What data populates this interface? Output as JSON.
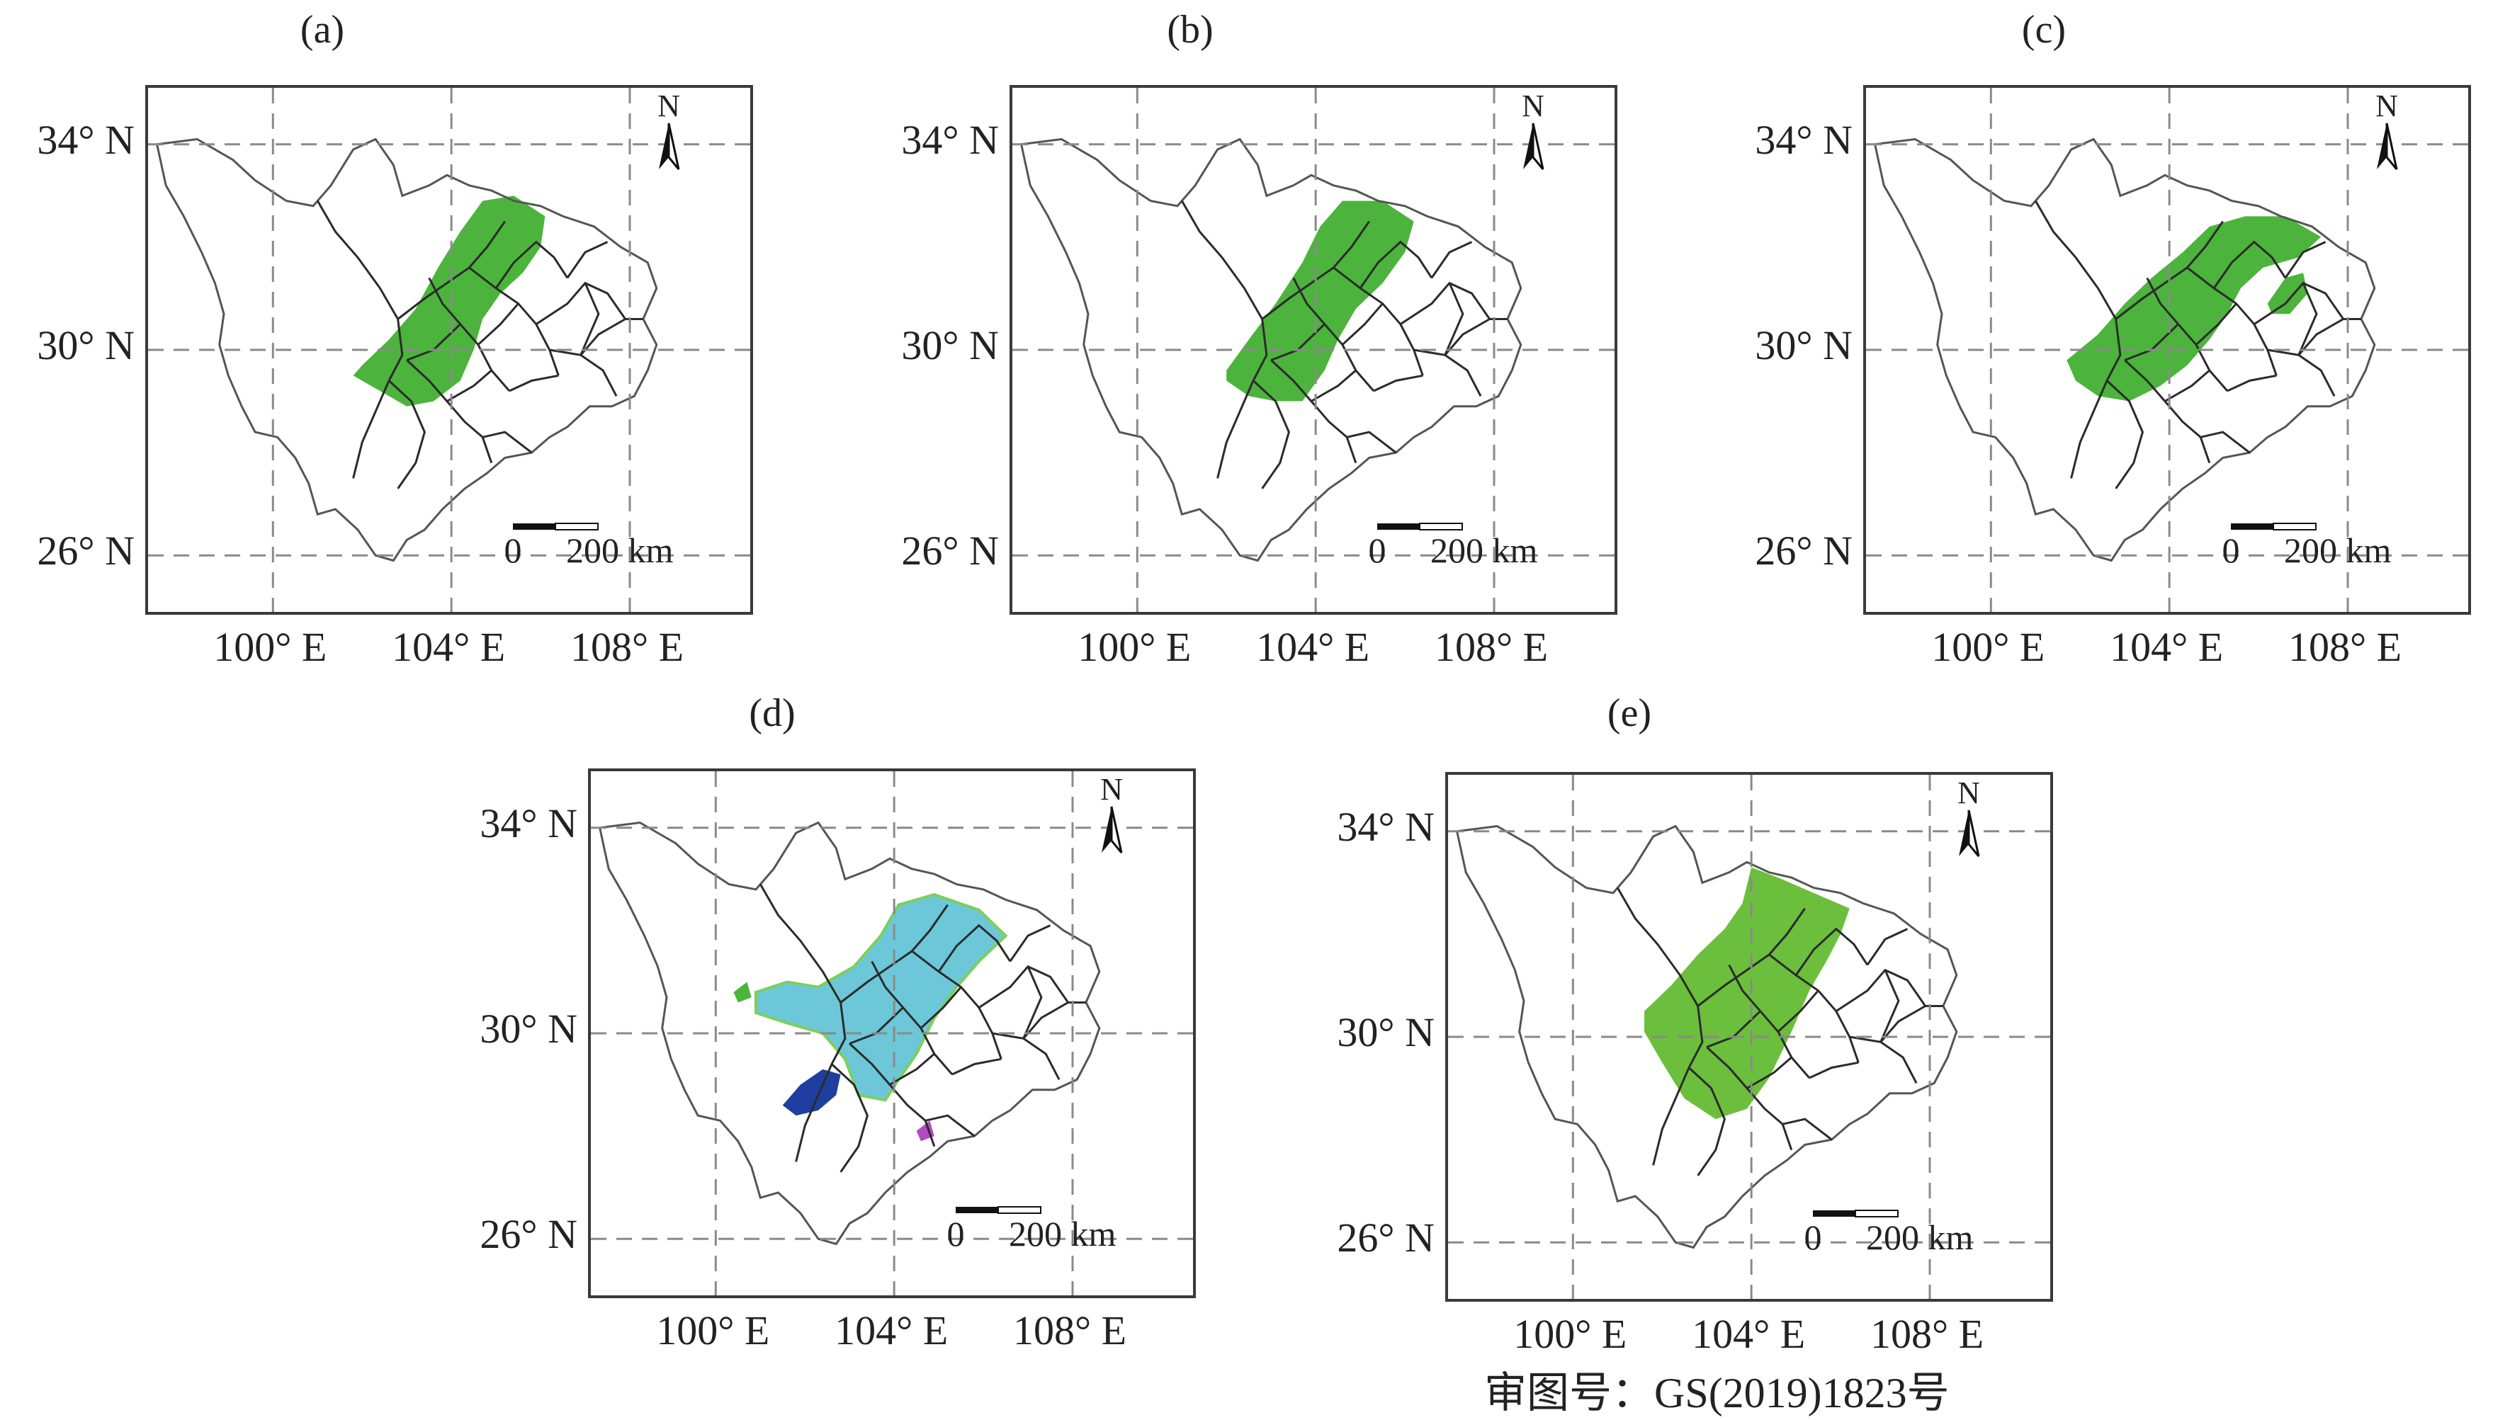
{
  "panels": [
    {
      "label": "(a)",
      "fill": "#4cb43c",
      "patches": [
        "main"
      ]
    },
    {
      "label": "(b)",
      "fill": "#4cb43c",
      "patches": [
        "main"
      ]
    },
    {
      "label": "(c)",
      "fill": "#4cb43c",
      "patches": [
        "main",
        "east-spot"
      ]
    },
    {
      "label": "(d)",
      "fill": "#6cc8d8",
      "patches": [
        "main",
        "west-spot",
        "dark-blue",
        "purple-spot"
      ]
    },
    {
      "label": "(e)",
      "fill": "#6cbf3c",
      "patches": [
        "main"
      ]
    }
  ],
  "lat_labels": [
    "34° N",
    "30° N",
    "26° N"
  ],
  "lon_labels": [
    "100° E",
    "104° E",
    "108° E"
  ],
  "scale_bar": {
    "zero": "0",
    "distance": "200 km"
  },
  "north_arrow": {
    "letter": "N"
  },
  "colors": {
    "green": "#4cb43c",
    "light_green": "#6cbf3c",
    "cyan": "#6cc8d8",
    "dark_blue": "#1f3fa0",
    "purple": "#b04cc0",
    "frame": "#3a3a3a",
    "grid": "#8a8a8a"
  },
  "approval_number": "审图号：GS(2019)1823号"
}
